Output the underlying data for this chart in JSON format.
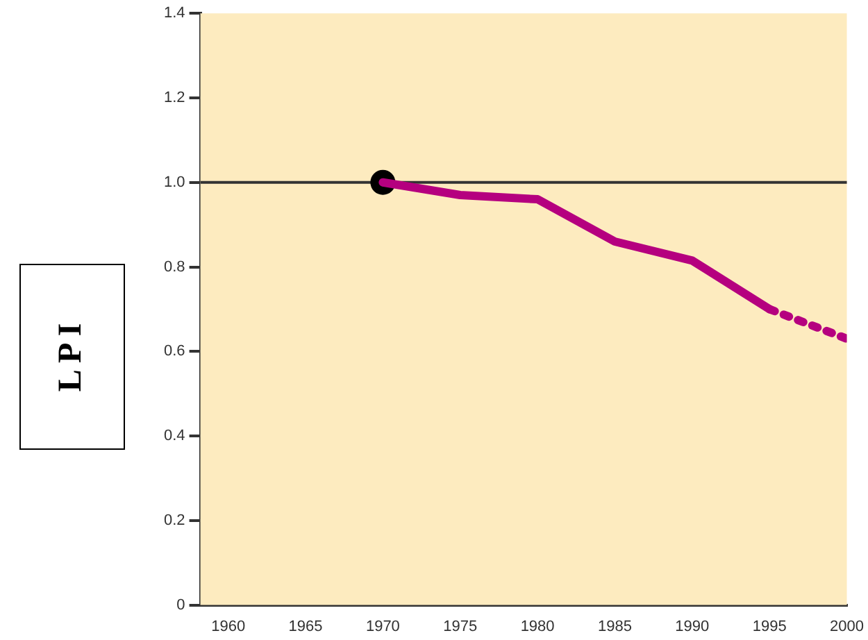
{
  "chart_data": {
    "type": "line",
    "ylabel": "L P I",
    "x": [
      1970,
      1975,
      1980,
      1985,
      1990,
      1995
    ],
    "series": [
      {
        "color": "#b5007f",
        "values": [
          1.0,
          0.97,
          0.96,
          0.86,
          0.815,
          0.7
        ],
        "line_style": "solid",
        "marker": "none"
      },
      {
        "color": "#b5007f",
        "x": [
          1995,
          2000
        ],
        "values": [
          0.7,
          0.63
        ],
        "line_style": "dotted",
        "marker": "none"
      },
      {
        "type": "scatter",
        "color": "#000000",
        "x": [
          1970
        ],
        "values": [
          1.0
        ],
        "marker": "circle"
      }
    ],
    "xlim": [
      1958.2,
      2000
    ],
    "xticks": [
      1960,
      1965,
      1970,
      1975,
      1980,
      1985,
      1990,
      1995,
      2000
    ],
    "ylim": [
      0,
      1.4
    ],
    "yticks": [
      0,
      {
        "value": 0.2,
        "label": "0.2"
      },
      {
        "value": 0.4,
        "label": "0.4"
      },
      {
        "value": 0.6,
        "label": "0.6"
      },
      {
        "value": 0.8,
        "label": "0.8"
      },
      {
        "value": 1.0,
        "label": "1.0"
      },
      {
        "value": 1.2,
        "label": "1.2"
      },
      {
        "value": 1.4,
        "label": "1.4"
      }
    ],
    "ref_lines": [
      {
        "axis": "y",
        "value": 1.0,
        "color": "#333333"
      }
    ],
    "grid": false,
    "legend": false
  }
}
